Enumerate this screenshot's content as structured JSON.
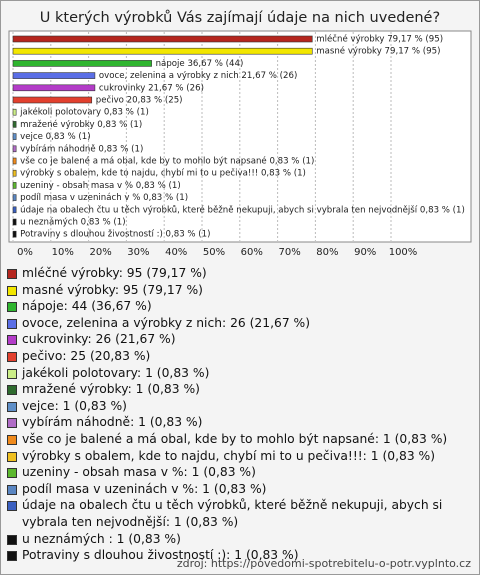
{
  "chart_data": {
    "type": "bar",
    "orientation": "horizontal",
    "title": "U kterých výrobků Vás zajímají údaje na nich uvedené?",
    "categories": [
      "mléčné výrobky",
      "masné výrobky",
      "nápoje",
      "ovoce, zelenina a výrobky z nich",
      "cukrovinky",
      "pečivo",
      "jakékoli polotovary",
      "mražené výrobky",
      "vejce",
      "vybírám náhodně",
      "vše co je balené a má obal, kde by to mohlo být napsané",
      "výrobky s obalem, kde to najdu, chybí mi to u pečiva!!!",
      "uzeniny - obsah masa v %",
      "podíl masa v uzeninách v %",
      "údaje na obalech čtu u těch výrobků, které běžně nekupuji, abych si vybrala ten nejvodnější",
      "u neznámých ",
      "Potraviny s dlouhou živostností :)"
    ],
    "values": [
      79.17,
      79.17,
      36.67,
      21.67,
      21.67,
      20.83,
      0.83,
      0.83,
      0.83,
      0.83,
      0.83,
      0.83,
      0.83,
      0.83,
      0.83,
      0.83,
      0.83
    ],
    "value_labels": [
      "mléčné výrobky 79,17 % (95)",
      "masné výrobky 79,17 % (95)",
      "nápoje 36,67 % (44)",
      "ovoce, zelenina a výrobky z nich 21,67 % (26)",
      "cukrovinky 21,67 % (26)",
      "pečivo 20,83 % (25)",
      "jakékoli polotovary 0,83 % (1)",
      "mražené výrobky 0,83 % (1)",
      "vejce 0,83 % (1)",
      "vybírám náhodně 0,83 % (1)",
      "vše co je balené a má obal, kde by to mohlo být napsané 0,83 % (1)",
      "výrobky s obalem, kde to najdu, chybí mi to u pečiva!!! 0,83 % (1)",
      "uzeniny - obsah masa v % 0,83 % (1)",
      "podíl masa v uzeninách v % 0,83 % (1)",
      "údaje na obalech čtu u těch výrobků, které běžně nekupuji, abych si vybrala ten nejvodnější 0,83 % (1)",
      "u neznámých  0,83 % (1)",
      "Potraviny s dlouhou živostností :) 0,83 % (1)"
    ],
    "legend_labels": [
      "mléčné výrobky: 95 (79,17 %)",
      "masné výrobky: 95 (79,17 %)",
      "nápoje: 44 (36,67 %)",
      "ovoce, zelenina a výrobky z nich: 26 (21,67 %)",
      "cukrovinky: 26 (21,67 %)",
      "pečivo: 25 (20,83 %)",
      "jakékoli polotovary: 1 (0,83 %)",
      "mražené výrobky: 1 (0,83 %)",
      "vejce: 1 (0,83 %)",
      "vybírám náhodně: 1 (0,83 %)",
      "vše co je balené a má obal, kde by to mohlo být napsané: 1 (0,83 %)",
      "výrobky s obalem, kde to najdu, chybí mi to u pečiva!!!: 1 (0,83 %)",
      "uzeniny - obsah masa v %: 1 (0,83 %)",
      "podíl masa v uzeninách v %: 1 (0,83 %)",
      "údaje na obalech čtu u těch výrobků, které běžně nekupuji, abych si vybrala ten nejvodnější: 1 (0,83 %)",
      "u neznámých : 1 (0,83 %)",
      "Potraviny s dlouhou živostností :): 1 (0,83 %)"
    ],
    "colors": [
      "#b5261e",
      "#f2e600",
      "#2fb52f",
      "#5a6ee6",
      "#b33cc8",
      "#e2402e",
      "#ccee88",
      "#2f6b2f",
      "#5f8fc8",
      "#b06cc6",
      "#f08a1c",
      "#f0c020",
      "#5cb82e",
      "#5a86c2",
      "#3a5fc0",
      "#111111",
      "#111111"
    ],
    "xlim": [
      0,
      100
    ],
    "xticks": [
      {
        "value": 0,
        "label": "0%"
      },
      {
        "value": 10,
        "label": "10%"
      },
      {
        "value": 20,
        "label": "20%"
      },
      {
        "value": 30,
        "label": "30%"
      },
      {
        "value": 40,
        "label": "40%"
      },
      {
        "value": 50,
        "label": "50%"
      },
      {
        "value": 60,
        "label": "60%"
      },
      {
        "value": 70,
        "label": "70%"
      },
      {
        "value": 80,
        "label": "80%"
      },
      {
        "value": 90,
        "label": "90%"
      },
      {
        "value": 100,
        "label": "100%"
      }
    ],
    "grid": true,
    "source": "zdroj: https://povedomi-spotrebitelu-o-potr.vyplnto.cz"
  }
}
